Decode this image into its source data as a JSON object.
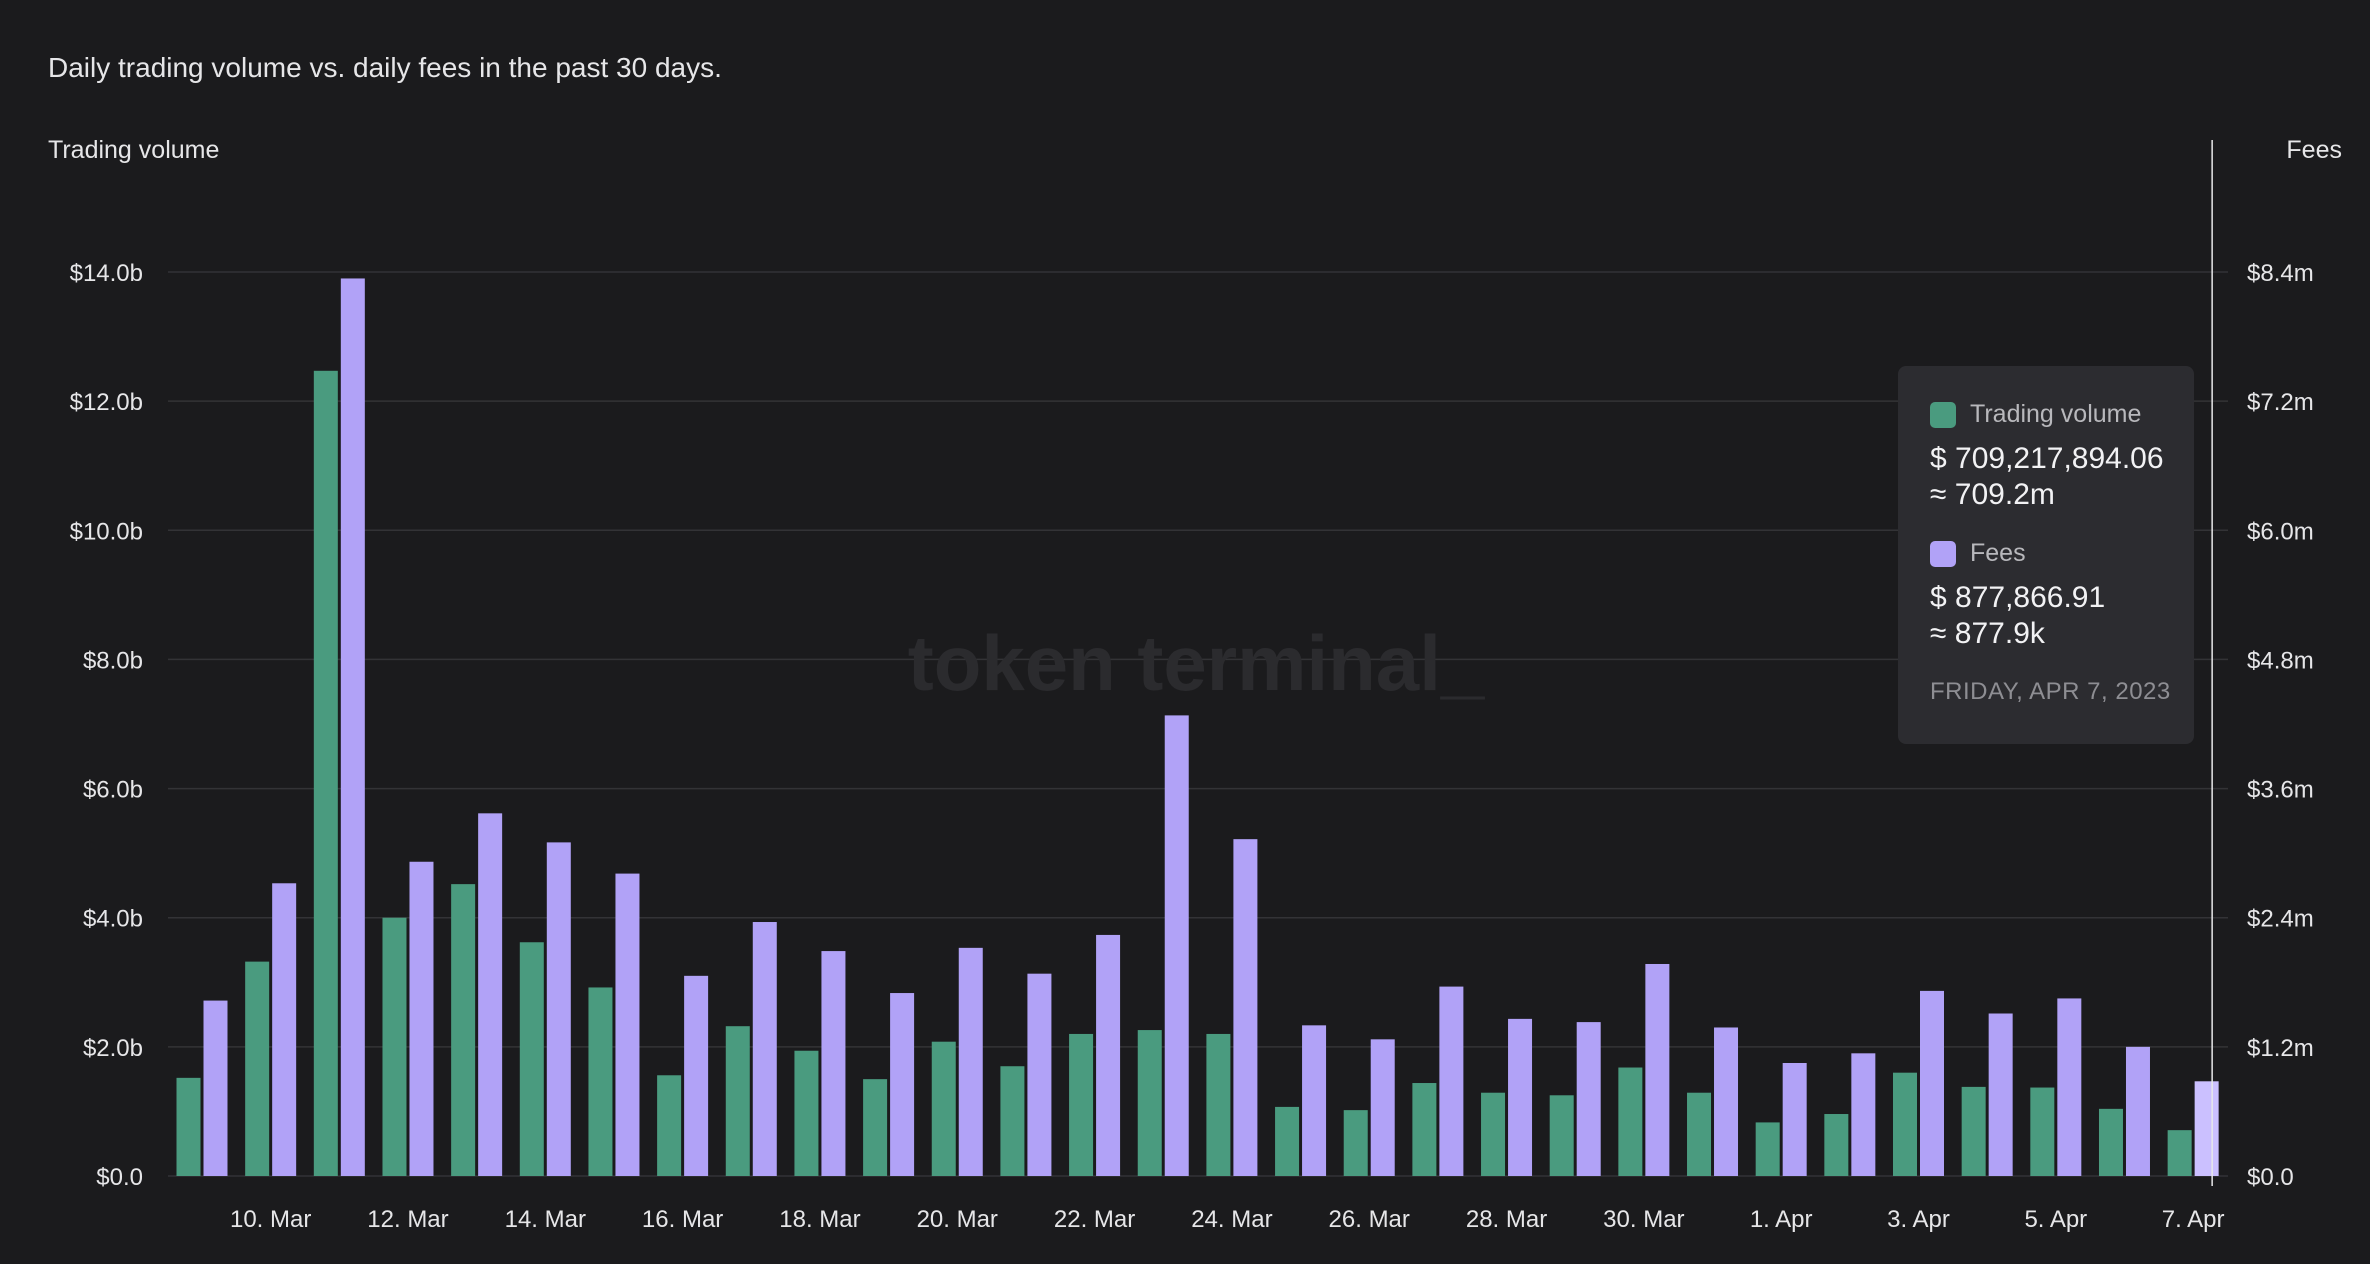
{
  "title": "Daily trading volume vs. daily fees in the past 30 days.",
  "watermark": "token terminal_",
  "tooltip": {
    "series1_label": "Trading volume",
    "series1_value": "$ 709,217,894.06",
    "series1_approx": "≈ 709.2m",
    "series2_label": "Fees",
    "series2_value": "$ 877,866.91",
    "series2_approx": "≈ 877.9k",
    "date": "FRIDAY, APR 7, 2023"
  },
  "colors": {
    "background": "#1b1b1d",
    "trading_volume": "#4a9b7f",
    "fees": "#b1a2f7",
    "fees_highlight": "#cbc0ff",
    "grid": "#333336"
  },
  "chart_data": {
    "type": "bar",
    "left_axis_label": "Trading volume",
    "right_axis_label": "Fees",
    "x_tick_labels": [
      "10. Mar",
      "12. Mar",
      "14. Mar",
      "16. Mar",
      "18. Mar",
      "20. Mar",
      "22. Mar",
      "24. Mar",
      "26. Mar",
      "28. Mar",
      "30. Mar",
      "1. Apr",
      "3. Apr",
      "5. Apr",
      "7. Apr"
    ],
    "left_tick_labels": [
      "$0.0",
      "$2.0b",
      "$4.0b",
      "$6.0b",
      "$8.0b",
      "$10.0b",
      "$12.0b",
      "$14.0b"
    ],
    "right_tick_labels": [
      "$0.0",
      "$1.2m",
      "$2.4m",
      "$3.6m",
      "$4.8m",
      "$6.0m",
      "$7.2m",
      "$8.4m"
    ],
    "left_ylim": [
      0,
      14
    ],
    "right_ylim": [
      0,
      8.4
    ],
    "categories": [
      "2023-03-09",
      "2023-03-10",
      "2023-03-11",
      "2023-03-12",
      "2023-03-13",
      "2023-03-14",
      "2023-03-15",
      "2023-03-16",
      "2023-03-17",
      "2023-03-18",
      "2023-03-19",
      "2023-03-20",
      "2023-03-21",
      "2023-03-22",
      "2023-03-23",
      "2023-03-24",
      "2023-03-25",
      "2023-03-26",
      "2023-03-27",
      "2023-03-28",
      "2023-03-29",
      "2023-03-30",
      "2023-03-31",
      "2023-04-01",
      "2023-04-02",
      "2023-04-03",
      "2023-04-04",
      "2023-04-05",
      "2023-04-06",
      "2023-04-07"
    ],
    "series": [
      {
        "name": "Trading volume",
        "axis": "left",
        "unit": "$ billions",
        "values": [
          1.52,
          3.32,
          12.47,
          4.0,
          4.52,
          3.62,
          2.92,
          1.56,
          2.32,
          1.94,
          1.5,
          2.08,
          1.7,
          2.2,
          2.26,
          2.2,
          1.07,
          1.02,
          1.44,
          1.29,
          1.25,
          1.68,
          1.29,
          0.83,
          0.96,
          1.6,
          1.38,
          1.37,
          1.04,
          0.71
        ]
      },
      {
        "name": "Fees",
        "axis": "right",
        "unit": "$ millions",
        "values": [
          1.63,
          2.72,
          8.34,
          2.92,
          3.37,
          3.1,
          2.81,
          1.86,
          2.36,
          2.09,
          1.7,
          2.12,
          1.88,
          2.24,
          4.28,
          3.13,
          1.4,
          1.27,
          1.76,
          1.46,
          1.43,
          1.97,
          1.38,
          1.05,
          1.14,
          1.72,
          1.51,
          1.65,
          1.2,
          0.88
        ]
      }
    ],
    "highlighted_category": "2023-04-07"
  }
}
